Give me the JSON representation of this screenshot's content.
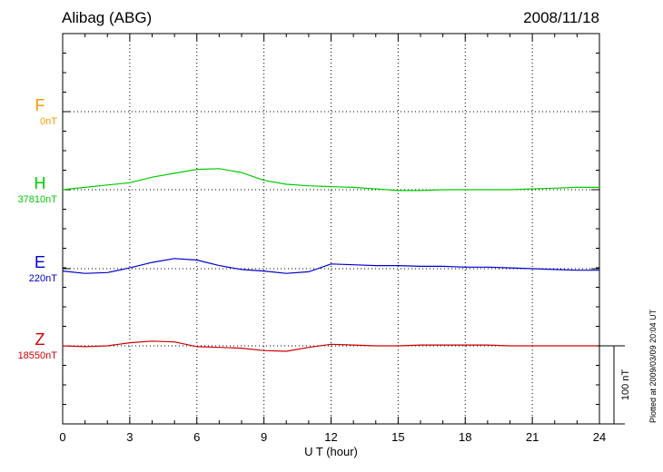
{
  "station": "Alibag (ABG)",
  "date": "2008/11/18",
  "footer_note": "Plotted at 2009/03/09 20:04 UT",
  "chart_data": {
    "type": "line",
    "xlabel": "U T (hour)",
    "x_ticks": [
      0,
      3,
      6,
      9,
      12,
      15,
      18,
      21,
      24
    ],
    "xlim": [
      0,
      24
    ],
    "scale_label": "100 nT",
    "scale_nT": 100,
    "series": [
      {
        "name": "F",
        "baseline_label": "0nT",
        "color": "#ff9900",
        "points": []
      },
      {
        "name": "H",
        "baseline_label": "37810nT",
        "color": "#00cc00",
        "points": [
          [
            0,
            0
          ],
          [
            1,
            3
          ],
          [
            2,
            6
          ],
          [
            3,
            9
          ],
          [
            4,
            16
          ],
          [
            5,
            21
          ],
          [
            6,
            26
          ],
          [
            7,
            27
          ],
          [
            8,
            22
          ],
          [
            9,
            12
          ],
          [
            10,
            7
          ],
          [
            11,
            5
          ],
          [
            12,
            4
          ],
          [
            13,
            3
          ],
          [
            14,
            1
          ],
          [
            15,
            -1
          ],
          [
            16,
            -1
          ],
          [
            17,
            0
          ],
          [
            18,
            0
          ],
          [
            19,
            0
          ],
          [
            20,
            0
          ],
          [
            21,
            1
          ],
          [
            22,
            2
          ],
          [
            23,
            3
          ],
          [
            24,
            3
          ]
        ]
      },
      {
        "name": "E",
        "baseline_label": "220nT",
        "color": "#0000cc",
        "points": [
          [
            0,
            -3
          ],
          [
            1,
            -6
          ],
          [
            2,
            -5
          ],
          [
            3,
            1
          ],
          [
            4,
            8
          ],
          [
            5,
            13
          ],
          [
            6,
            11
          ],
          [
            7,
            4
          ],
          [
            8,
            -1
          ],
          [
            9,
            -3
          ],
          [
            10,
            -6
          ],
          [
            11,
            -4
          ],
          [
            12,
            6
          ],
          [
            13,
            5
          ],
          [
            14,
            4
          ],
          [
            15,
            4
          ],
          [
            16,
            3
          ],
          [
            17,
            3
          ],
          [
            18,
            2
          ],
          [
            19,
            2
          ],
          [
            20,
            1
          ],
          [
            21,
            0
          ],
          [
            22,
            -1
          ],
          [
            23,
            -2
          ],
          [
            24,
            -2
          ]
        ]
      },
      {
        "name": "Z",
        "baseline_label": "18550nT",
        "color": "#cc0000",
        "points": [
          [
            0,
            0
          ],
          [
            1,
            -1
          ],
          [
            2,
            0
          ],
          [
            3,
            4
          ],
          [
            4,
            6
          ],
          [
            5,
            5
          ],
          [
            6,
            -1
          ],
          [
            7,
            -2
          ],
          [
            8,
            -3
          ],
          [
            9,
            -6
          ],
          [
            10,
            -7
          ],
          [
            11,
            -2
          ],
          [
            12,
            2
          ],
          [
            13,
            1
          ],
          [
            14,
            0
          ],
          [
            15,
            0
          ],
          [
            16,
            1
          ],
          [
            17,
            1
          ],
          [
            18,
            1
          ],
          [
            19,
            1
          ],
          [
            20,
            0
          ],
          [
            21,
            0
          ],
          [
            22,
            0
          ],
          [
            23,
            0
          ],
          [
            24,
            0
          ]
        ]
      }
    ]
  }
}
